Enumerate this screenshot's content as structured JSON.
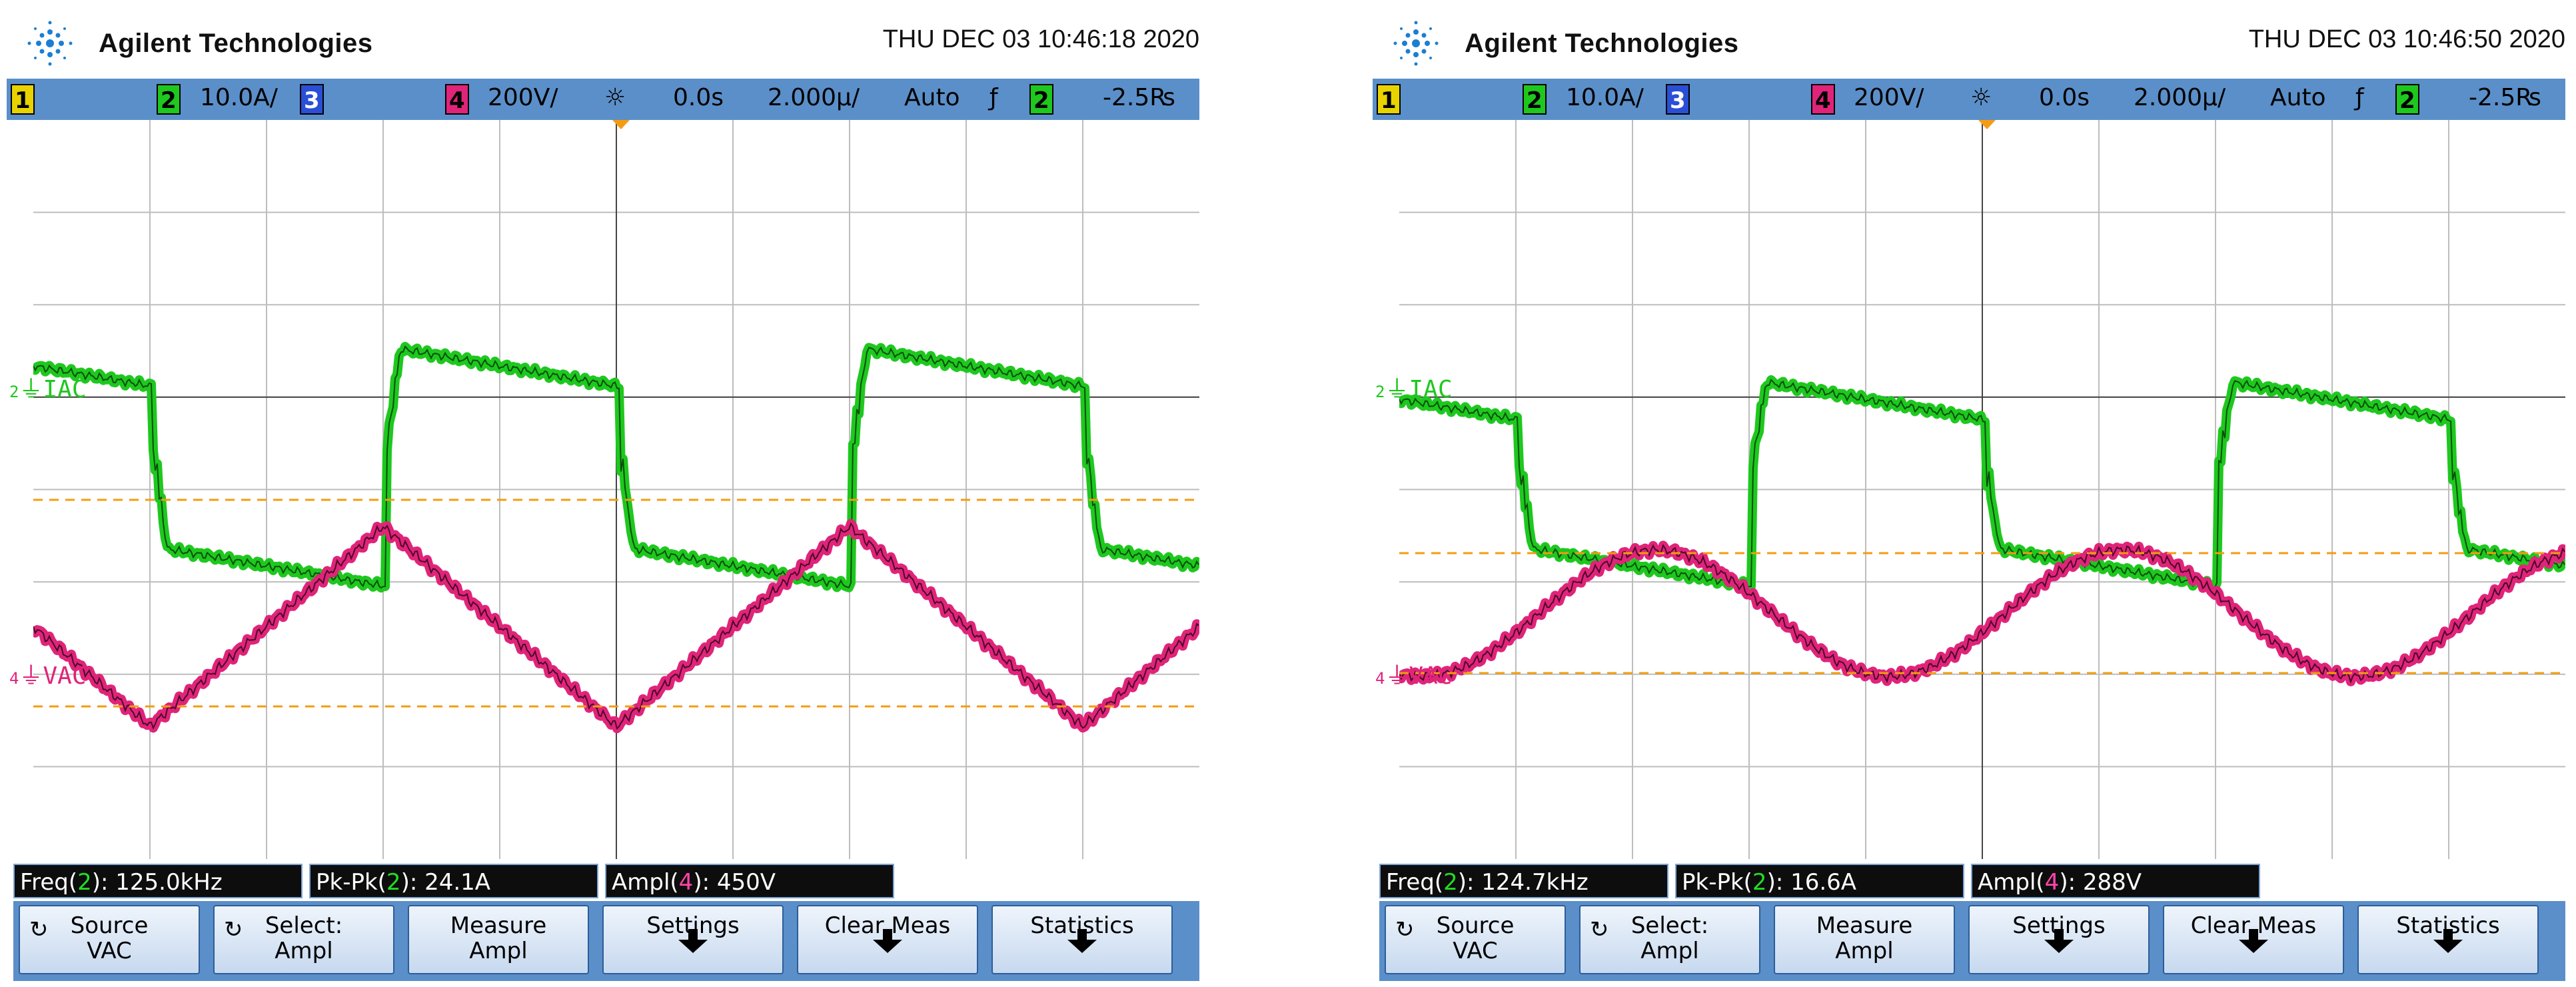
{
  "brand": {
    "name": "Agilent Technologies",
    "logo_icon": "agilent-spark-icon"
  },
  "colors": {
    "ch2": "#1ec81e",
    "ch4": "#e0247a",
    "grid": "#bdbdbd",
    "bar": "#5b8fc9",
    "cursor": "#f39c12"
  },
  "scopes": [
    {
      "datetime": "THU DEC 03 10:46:18 2020",
      "status": {
        "ch1": "1",
        "ch2": "2",
        "ch2_scale": "10.0A/",
        "ch3": "3",
        "ch4": "4",
        "ch4_scale": "200V/",
        "delay": "0.0s",
        "timebase": "2.000µ/",
        "trigger_mode": "Auto",
        "trigger_slope": "ƒ",
        "trigger_ch": "2",
        "trigger_level": "-2.5₨"
      },
      "labels": {
        "iac": "IAC",
        "vac": "VAC",
        "iac_marker": "2",
        "vac_marker": "4"
      },
      "measurements": [
        {
          "prefix": "Freq(",
          "ch": "2",
          "suffix": "): 125.0kHz",
          "color": "ch2"
        },
        {
          "prefix": "Pk-Pk(",
          "ch": "2",
          "suffix": "): 24.1A",
          "color": "ch2"
        },
        {
          "prefix": "Ampl(",
          "ch": "4",
          "suffix": "): 450V",
          "color": "ch4"
        }
      ]
    },
    {
      "datetime": "THU DEC 03 10:46:50 2020",
      "status": {
        "ch1": "1",
        "ch2": "2",
        "ch2_scale": "10.0A/",
        "ch3": "3",
        "ch4": "4",
        "ch4_scale": "200V/",
        "delay": "0.0s",
        "timebase": "2.000µ/",
        "trigger_mode": "Auto",
        "trigger_slope": "ƒ",
        "trigger_ch": "2",
        "trigger_level": "-2.5₨"
      },
      "labels": {
        "iac": "IAC",
        "vac": "VAC",
        "iac_marker": "2",
        "vac_marker": "4"
      },
      "measurements": [
        {
          "prefix": "Freq(",
          "ch": "2",
          "suffix": "): 124.7kHz",
          "color": "ch2"
        },
        {
          "prefix": "Pk-Pk(",
          "ch": "2",
          "suffix": "): 16.6A",
          "color": "ch2"
        },
        {
          "prefix": "Ampl(",
          "ch": "4",
          "suffix": "): 288V",
          "color": "ch4"
        }
      ]
    }
  ],
  "softkeys": [
    {
      "line1": "Source",
      "line2": "VAC",
      "icon": "rotate-knob-icon"
    },
    {
      "line1": "Select:",
      "line2": "Ampl",
      "icon": "rotate-knob-icon"
    },
    {
      "line1": "Measure",
      "line2": "Ampl"
    },
    {
      "line1": "Settings",
      "arrow": true
    },
    {
      "line1": "Clear Meas",
      "arrow": true
    },
    {
      "line1": "Statistics",
      "arrow": true
    }
  ]
}
